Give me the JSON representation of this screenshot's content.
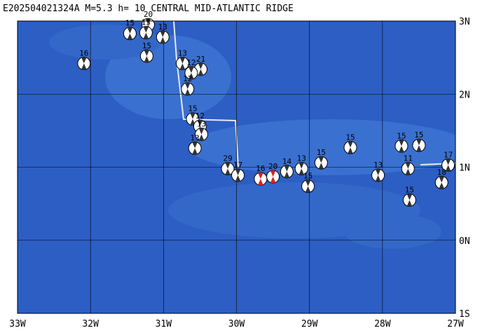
{
  "map": {
    "title": "E202504021324A M=5.3 h= 10 CENTRAL MID-ATLANTIC RIDGE",
    "lonlim": [
      -33,
      -27
    ],
    "latlim": [
      -1,
      3
    ],
    "lonticks": [
      {
        "value": -33,
        "label": "33W"
      },
      {
        "value": -32,
        "label": "32W"
      },
      {
        "value": -31,
        "label": "31W"
      },
      {
        "value": -30,
        "label": "30W"
      },
      {
        "value": -29,
        "label": "29W"
      },
      {
        "value": -28,
        "label": "28W"
      },
      {
        "value": -27,
        "label": "27W"
      }
    ],
    "latticks": [
      {
        "value": 3,
        "label": "3N"
      },
      {
        "value": 2,
        "label": "2N"
      },
      {
        "value": 1,
        "label": "1N"
      },
      {
        "value": 0,
        "label": "0N"
      },
      {
        "value": -1,
        "label": "1S"
      }
    ],
    "events": [
      {
        "lon": -31.46,
        "lat": 2.83,
        "depth": 15,
        "color": "#333333"
      },
      {
        "lon": -31.21,
        "lat": 2.95,
        "depth": 20,
        "color": "#333333"
      },
      {
        "lon": -31.24,
        "lat": 2.84,
        "depth": 13,
        "color": "#333333"
      },
      {
        "lon": -31.01,
        "lat": 2.78,
        "depth": 13,
        "color": "#333333"
      },
      {
        "lon": -32.09,
        "lat": 2.42,
        "depth": 16,
        "color": "#333333"
      },
      {
        "lon": -31.23,
        "lat": 2.52,
        "depth": 15,
        "color": "#333333"
      },
      {
        "lon": -30.74,
        "lat": 2.42,
        "depth": 13,
        "color": "#333333"
      },
      {
        "lon": -30.49,
        "lat": 2.34,
        "depth": 21,
        "color": "#333333"
      },
      {
        "lon": -30.62,
        "lat": 2.29,
        "depth": 12,
        "color": "#333333"
      },
      {
        "lon": -30.67,
        "lat": 2.07,
        "depth": 12,
        "color": "#333333"
      },
      {
        "lon": -30.6,
        "lat": 1.66,
        "depth": 15,
        "color": "#333333"
      },
      {
        "lon": -30.5,
        "lat": 1.56,
        "depth": 12,
        "color": "#333333"
      },
      {
        "lon": -30.48,
        "lat": 1.45,
        "depth": 13,
        "color": "#333333"
      },
      {
        "lon": -30.57,
        "lat": 1.26,
        "depth": 13,
        "color": "#333333"
      },
      {
        "lon": -30.12,
        "lat": 0.98,
        "depth": 29,
        "color": "#333333"
      },
      {
        "lon": -29.98,
        "lat": 0.89,
        "depth": 17,
        "color": "#333333"
      },
      {
        "lon": -29.67,
        "lat": 0.84,
        "depth": 16,
        "color": "#e02020"
      },
      {
        "lon": -29.5,
        "lat": 0.87,
        "depth": 20,
        "color": "#e02020"
      },
      {
        "lon": -29.31,
        "lat": 0.94,
        "depth": 14,
        "color": "#333333"
      },
      {
        "lon": -29.11,
        "lat": 0.98,
        "depth": 13,
        "color": "#333333"
      },
      {
        "lon": -29.02,
        "lat": 0.74,
        "depth": 15,
        "color": "#333333"
      },
      {
        "lon": -28.84,
        "lat": 1.06,
        "depth": 15,
        "color": "#333333"
      },
      {
        "lon": -28.44,
        "lat": 1.27,
        "depth": 15,
        "color": "#333333"
      },
      {
        "lon": -28.06,
        "lat": 0.89,
        "depth": 13,
        "color": "#333333"
      },
      {
        "lon": -27.74,
        "lat": 1.29,
        "depth": 15,
        "color": "#333333"
      },
      {
        "lon": -27.5,
        "lat": 1.3,
        "depth": 15,
        "color": "#333333"
      },
      {
        "lon": -27.65,
        "lat": 0.98,
        "depth": 11,
        "color": "#333333"
      },
      {
        "lon": -27.63,
        "lat": 0.55,
        "depth": 15,
        "color": "#333333"
      },
      {
        "lon": -27.1,
        "lat": 1.03,
        "depth": 17,
        "color": "#333333"
      },
      {
        "lon": -27.19,
        "lat": 0.79,
        "depth": 18,
        "color": "#333333"
      }
    ]
  }
}
